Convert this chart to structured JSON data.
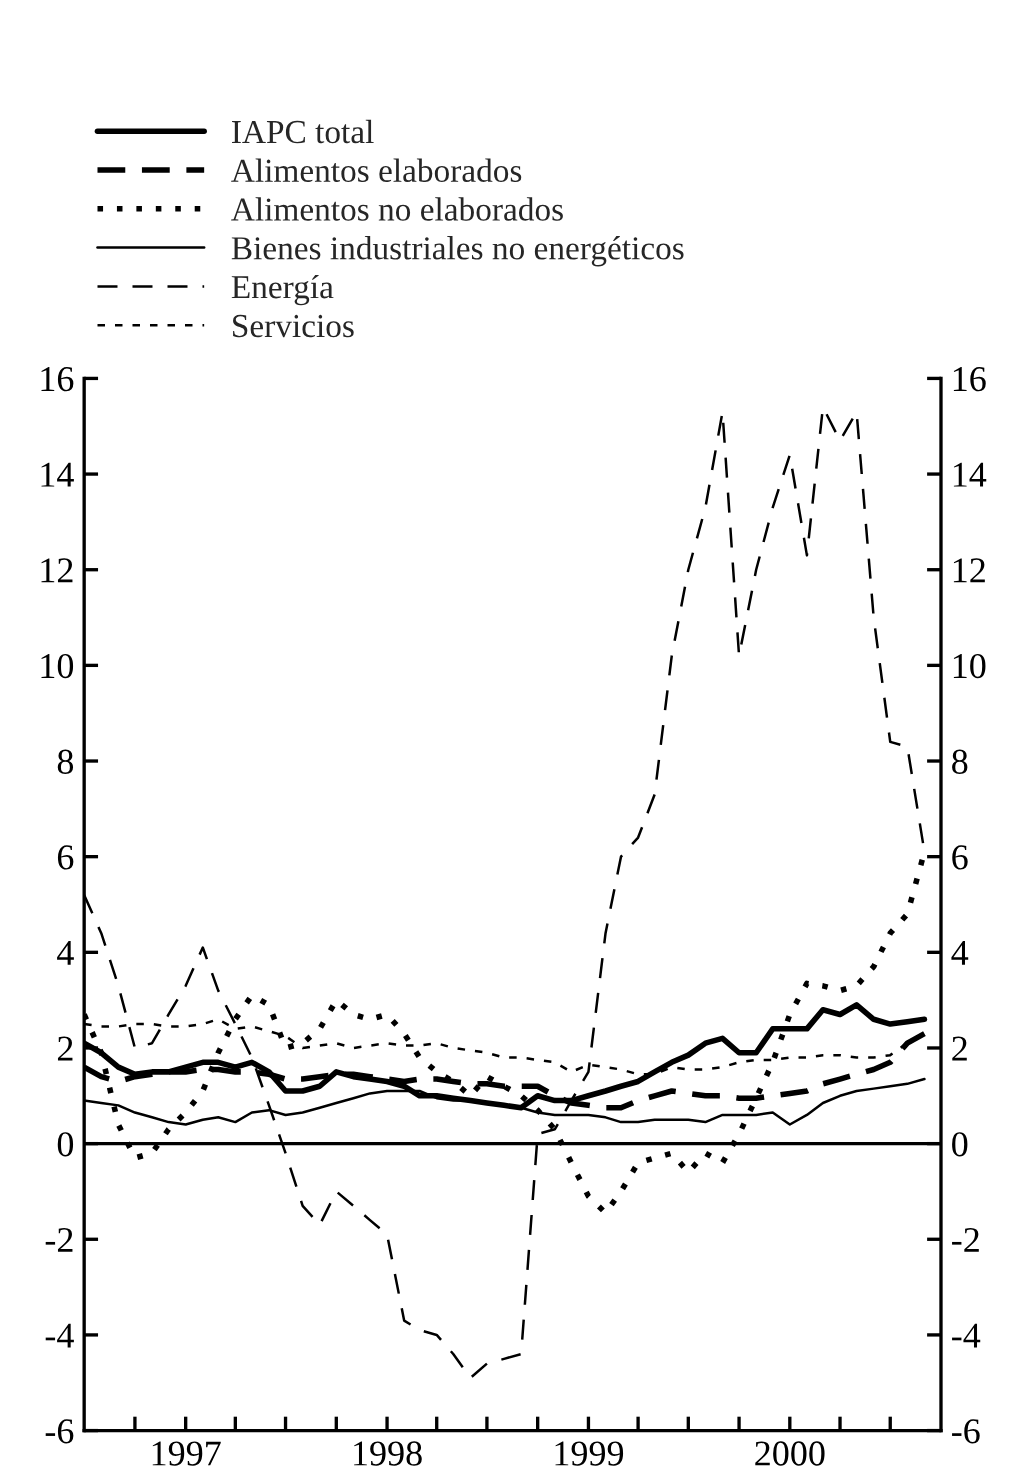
{
  "chart_data": {
    "type": "line",
    "x": [
      "1996-07",
      "1996-08",
      "1996-09",
      "1996-10",
      "1996-11",
      "1996-12",
      "1997-01",
      "1997-02",
      "1997-03",
      "1997-04",
      "1997-05",
      "1997-06",
      "1997-07",
      "1997-08",
      "1997-09",
      "1997-10",
      "1997-11",
      "1997-12",
      "1998-01",
      "1998-02",
      "1998-03",
      "1998-04",
      "1998-05",
      "1998-06",
      "1998-07",
      "1998-08",
      "1998-09",
      "1998-10",
      "1998-11",
      "1998-12",
      "1999-01",
      "1999-02",
      "1999-03",
      "1999-04",
      "1999-05",
      "1999-06",
      "1999-07",
      "1999-08",
      "1999-09",
      "1999-10",
      "1999-11",
      "1999-12",
      "2000-01",
      "2000-02",
      "2000-03",
      "2000-04",
      "2000-05",
      "2000-06",
      "2000-07",
      "2000-08",
      "2000-09"
    ],
    "series": [
      {
        "name": "IAPC total",
        "color": "#000000",
        "line_style": "solid",
        "values": [
          2.1,
          1.9,
          1.6,
          1.45,
          1.5,
          1.5,
          1.6,
          1.7,
          1.7,
          1.6,
          1.7,
          1.5,
          1.1,
          1.1,
          1.2,
          1.5,
          1.4,
          1.35,
          1.3,
          1.2,
          1.0,
          1.0,
          0.95,
          0.9,
          0.85,
          0.8,
          0.75,
          1.0,
          0.9,
          0.9,
          1.0,
          1.1,
          1.2,
          1.3,
          1.5,
          1.7,
          1.85,
          2.1,
          2.2,
          1.9,
          1.9,
          2.4,
          2.4,
          2.4,
          2.8,
          2.7,
          2.9,
          2.6,
          2.5,
          2.55,
          2.6
        ]
      },
      {
        "name": "Alimentos elaborados",
        "color": "#000000",
        "line_style": "dashed",
        "values": [
          1.6,
          1.4,
          1.3,
          1.4,
          1.45,
          1.5,
          1.5,
          1.55,
          1.55,
          1.5,
          1.5,
          1.45,
          1.35,
          1.35,
          1.4,
          1.45,
          1.45,
          1.4,
          1.35,
          1.3,
          1.35,
          1.35,
          1.3,
          1.25,
          1.25,
          1.2,
          1.2,
          1.2,
          1.0,
          0.85,
          0.8,
          0.75,
          0.75,
          0.9,
          1.0,
          1.1,
          1.05,
          1.0,
          1.0,
          0.95,
          0.95,
          1.0,
          1.05,
          1.1,
          1.25,
          1.35,
          1.45,
          1.55,
          1.7,
          2.1,
          2.3
        ]
      },
      {
        "name": "Alimentos no elaborados",
        "color": "#000000",
        "line_style": "dotted",
        "values": [
          2.7,
          1.9,
          0.4,
          -0.3,
          -0.2,
          0.3,
          0.65,
          1.1,
          1.9,
          2.6,
          3.1,
          2.9,
          2.0,
          2.1,
          2.4,
          3.0,
          2.7,
          2.6,
          2.7,
          2.3,
          1.8,
          1.5,
          1.3,
          1.0,
          1.4,
          1.2,
          1.0,
          0.7,
          0.3,
          -0.4,
          -1.1,
          -1.45,
          -1.0,
          -0.4,
          -0.3,
          -0.2,
          -0.6,
          -0.2,
          -0.4,
          0.2,
          0.95,
          1.7,
          2.7,
          3.35,
          3.3,
          3.2,
          3.3,
          3.7,
          4.4,
          4.8,
          6.1
        ]
      },
      {
        "name": "Bienes industriales no energéticos",
        "color": "#000000",
        "line_style": "solid",
        "values": [
          0.9,
          0.85,
          0.8,
          0.65,
          0.55,
          0.45,
          0.4,
          0.5,
          0.55,
          0.45,
          0.65,
          0.7,
          0.6,
          0.65,
          0.75,
          0.85,
          0.95,
          1.05,
          1.1,
          1.1,
          1.1,
          0.95,
          0.9,
          0.9,
          0.85,
          0.8,
          0.75,
          0.65,
          0.6,
          0.6,
          0.6,
          0.55,
          0.45,
          0.45,
          0.5,
          0.5,
          0.5,
          0.45,
          0.6,
          0.6,
          0.6,
          0.65,
          0.4,
          0.6,
          0.85,
          1.0,
          1.1,
          1.15,
          1.2,
          1.25,
          1.35
        ]
      },
      {
        "name": "Energía",
        "color": "#000000",
        "line_style": "dashed",
        "values": [
          5.2,
          4.4,
          3.3,
          2.0,
          2.1,
          2.7,
          3.3,
          4.1,
          3.2,
          2.5,
          1.8,
          0.8,
          -0.2,
          -1.3,
          -1.7,
          -1.0,
          -1.3,
          -1.6,
          -1.9,
          -3.7,
          -3.9,
          -4.0,
          -4.4,
          -4.9,
          -4.6,
          -4.5,
          -4.4,
          0.2,
          0.3,
          0.9,
          1.5,
          4.4,
          6.0,
          6.4,
          7.3,
          10.2,
          12.0,
          13.3,
          15.3,
          10.2,
          12.0,
          13.3,
          14.4,
          12.3,
          15.4,
          14.7,
          15.3,
          11.0,
          8.4,
          8.3,
          6.1
        ]
      },
      {
        "name": "Servicios",
        "color": "#000000",
        "line_style": "dotted",
        "values": [
          2.5,
          2.45,
          2.45,
          2.5,
          2.5,
          2.45,
          2.45,
          2.5,
          2.6,
          2.4,
          2.45,
          2.35,
          2.25,
          2.0,
          2.05,
          2.1,
          2.0,
          2.05,
          2.1,
          2.05,
          2.05,
          2.1,
          2.0,
          1.95,
          1.9,
          1.8,
          1.8,
          1.75,
          1.7,
          1.5,
          1.65,
          1.6,
          1.55,
          1.45,
          1.45,
          1.6,
          1.55,
          1.55,
          1.6,
          1.7,
          1.75,
          1.75,
          1.8,
          1.8,
          1.85,
          1.85,
          1.8,
          1.8,
          1.85,
          2.1,
          2.3
        ]
      }
    ],
    "xlim": [
      "1996-07",
      "2000-10"
    ],
    "xticks": [
      {
        "value": "1996-10",
        "label": null
      },
      {
        "value": "1997-01",
        "label": "1997"
      },
      {
        "value": "1997-04",
        "label": null
      },
      {
        "value": "1997-07",
        "label": null
      },
      {
        "value": "1997-10",
        "label": null
      },
      {
        "value": "1998-01",
        "label": "1998"
      },
      {
        "value": "1998-04",
        "label": null
      },
      {
        "value": "1998-07",
        "label": null
      },
      {
        "value": "1998-10",
        "label": null
      },
      {
        "value": "1999-01",
        "label": "1999"
      },
      {
        "value": "1999-04",
        "label": null
      },
      {
        "value": "1999-07",
        "label": null
      },
      {
        "value": "1999-10",
        "label": null
      },
      {
        "value": "2000-01",
        "label": "2000"
      },
      {
        "value": "2000-04",
        "label": null
      },
      {
        "value": "2000-07",
        "label": null
      }
    ],
    "ylim": [
      -6,
      16
    ],
    "yticks": [
      -6,
      -4,
      -2,
      0,
      2,
      4,
      6,
      8,
      10,
      12,
      14,
      16
    ],
    "y2lim": [
      -6,
      16
    ],
    "y2ticks": [
      -6,
      -4,
      -2,
      0,
      2,
      4,
      6,
      8,
      10,
      12,
      14,
      16
    ],
    "ref_lines": [
      {
        "axis": "y",
        "value": 0,
        "color": "#000000"
      }
    ],
    "grid": false,
    "legend": "top"
  }
}
